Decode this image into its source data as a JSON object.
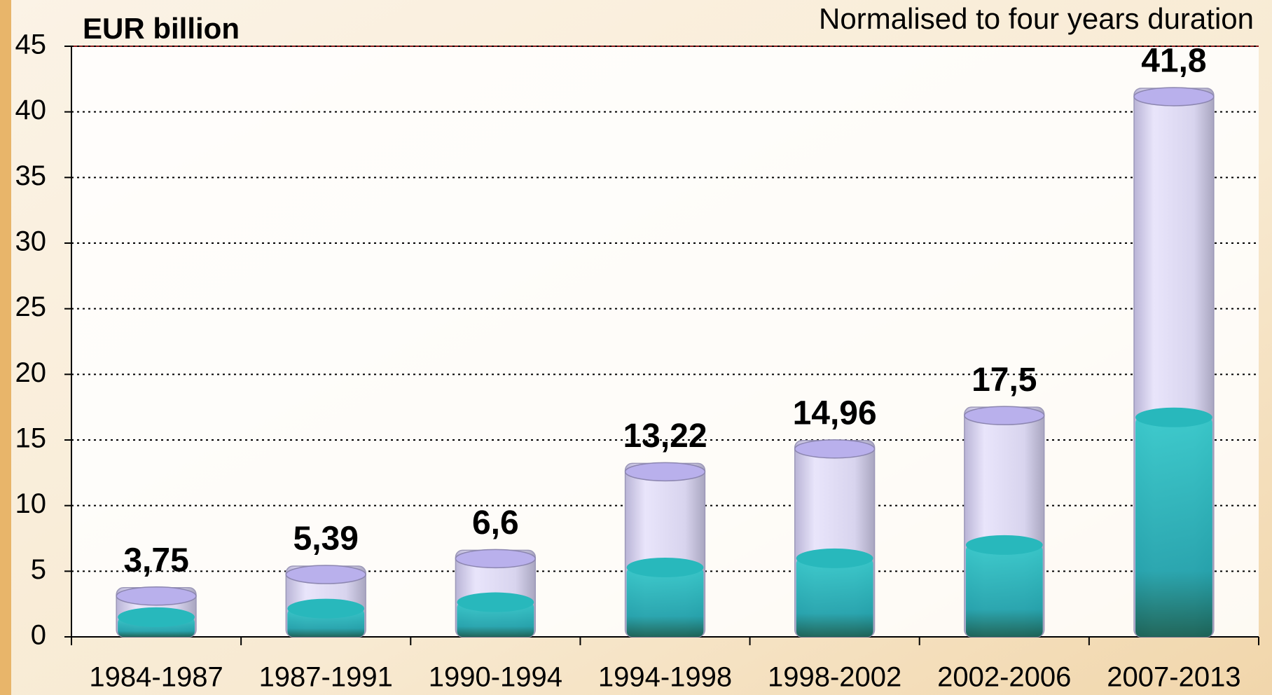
{
  "chart_data": {
    "type": "bar",
    "subtitle": "Normalised to four years duration",
    "y_label": "EUR billion",
    "categories": [
      "1984-1987",
      "1987-1991",
      "1990-1994",
      "1994-1998",
      "1998-2002",
      "2002-2006",
      "2007-2013"
    ],
    "values": [
      3.75,
      5.39,
      6.6,
      13.22,
      14.96,
      17.5,
      41.8
    ],
    "value_labels": [
      "3,75",
      "5,39",
      "6,6",
      "13,22",
      "14,96",
      "17,5",
      "41,8"
    ],
    "color": "#cfc8f0",
    "ylim": [
      0,
      45
    ],
    "yticks": [
      0,
      5,
      10,
      15,
      20,
      25,
      30,
      35,
      40,
      45
    ],
    "grid": true
  }
}
